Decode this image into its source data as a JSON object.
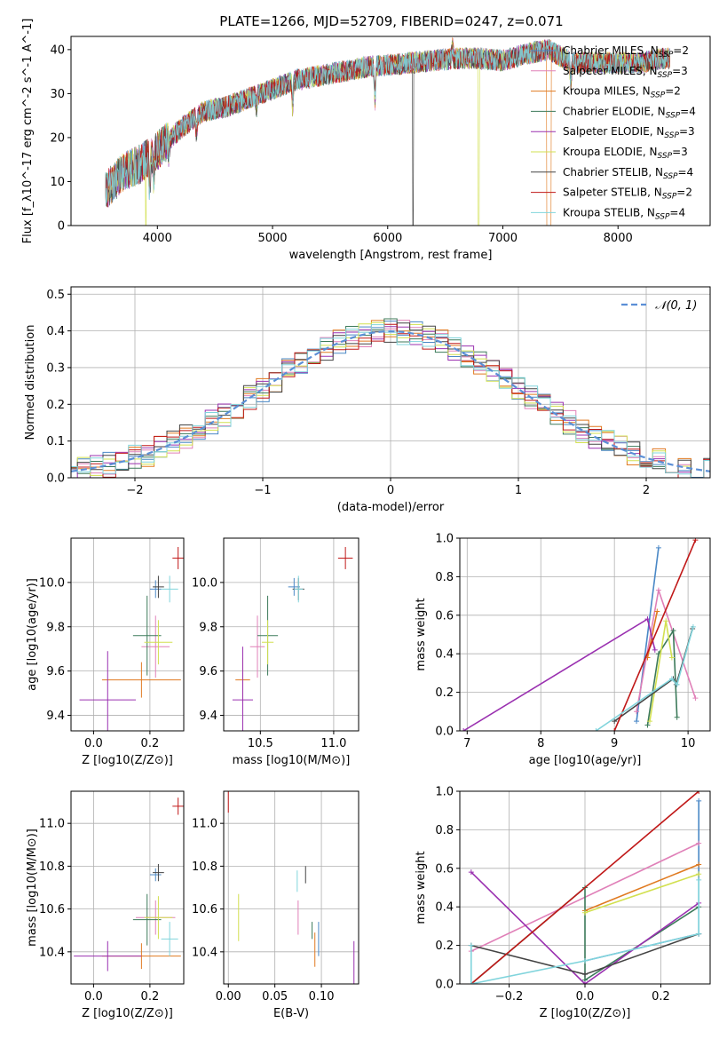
{
  "title": "PLATE=1266, MJD=52709, FIBERID=0247, z=0.071",
  "series": [
    {
      "name": "Chabrier MILES",
      "n_ssp": "2",
      "color": "#4a88c6"
    },
    {
      "name": "Salpeter MILES",
      "n_ssp": "3",
      "color": "#e080b8"
    },
    {
      "name": "Kroupa MILES",
      "n_ssp": "2",
      "color": "#e07a20"
    },
    {
      "name": "Chabrier ELODIE",
      "n_ssp": "4",
      "color": "#3c7a5a"
    },
    {
      "name": "Salpeter ELODIE",
      "n_ssp": "3",
      "color": "#9a30b0"
    },
    {
      "name": "Kroupa ELODIE",
      "n_ssp": "3",
      "color": "#d2e050"
    },
    {
      "name": "Chabrier STELIB",
      "n_ssp": "4",
      "color": "#444444"
    },
    {
      "name": "Salpeter STELIB",
      "n_ssp": "2",
      "color": "#c01818"
    },
    {
      "name": "Kroupa STELIB",
      "n_ssp": "4",
      "color": "#80d4dc"
    }
  ],
  "chart_data": [
    {
      "type": "line",
      "id": "spectrum",
      "xlabel": "wavelength [Angstrom, rest frame]",
      "ylabel": "Flux [f_λ10^-17 erg cm^-2 s^-1 A^-1]",
      "xlim": [
        3250,
        8800
      ],
      "ylim": [
        0,
        43
      ],
      "xticks": [
        "4000",
        "5000",
        "6000",
        "7000",
        "8000"
      ],
      "yticks": [
        "0",
        "10",
        "20",
        "30",
        "40"
      ],
      "continuum": {
        "x": [
          3550,
          3700,
          3850,
          4000,
          4200,
          4400,
          4600,
          4800,
          5000,
          5200,
          5400,
          5600,
          5800,
          6000,
          6200,
          6400,
          6600,
          6800,
          7000,
          7200,
          7400,
          7600,
          7800,
          8000,
          8200,
          8400
        ],
        "y": [
          8,
          12,
          14,
          17,
          22,
          26,
          27,
          29,
          31,
          33,
          34,
          35,
          36,
          36.5,
          37,
          37.5,
          38,
          38,
          37.5,
          39,
          40,
          37,
          37,
          37,
          37,
          38
        ]
      },
      "grid": false
    },
    {
      "type": "line",
      "id": "residual-histogram",
      "xlabel": "(data-model)/error",
      "ylabel": "Normed distribution",
      "xlim": [
        -2.5,
        2.5
      ],
      "ylim": [
        0,
        0.52
      ],
      "xticks": [
        "−2",
        "−1",
        "0",
        "1",
        "2"
      ],
      "yticks": [
        "0.0",
        "0.1",
        "0.2",
        "0.3",
        "0.4",
        "0.5"
      ],
      "reference_label": "𝒩(0, 1)",
      "bin_width": 0.1,
      "grid": true
    },
    {
      "type": "scatter",
      "id": "age-vs-Z",
      "xlabel": "Z [log10(Z/Z⊙)]",
      "ylabel": "age  [log10(age/yr)]",
      "xlim": [
        -0.08,
        0.32
      ],
      "ylim": [
        9.33,
        10.2
      ],
      "xticks": [
        "0.0",
        "0.2"
      ],
      "yticks": [
        "9.4",
        "9.6",
        "9.8",
        "10.0"
      ],
      "points": [
        {
          "x": 0.22,
          "y": 9.97,
          "xerr": 0.02,
          "yerr": 0.04
        },
        {
          "x": 0.22,
          "y": 9.71,
          "xerr": 0.05,
          "yerr": 0.14
        },
        {
          "x": 0.17,
          "y": 9.56,
          "xerr": 0.14,
          "yerr": 0.08
        },
        {
          "x": 0.19,
          "y": 9.76,
          "xerr": 0.05,
          "yerr": 0.18
        },
        {
          "x": 0.05,
          "y": 9.47,
          "xerr": 0.1,
          "yerr": 0.22
        },
        {
          "x": 0.23,
          "y": 9.73,
          "xerr": 0.05,
          "yerr": 0.1
        },
        {
          "x": 0.23,
          "y": 9.98,
          "xerr": 0.02,
          "yerr": 0.05
        },
        {
          "x": 0.3,
          "y": 10.11,
          "xerr": 0.02,
          "yerr": 0.05
        },
        {
          "x": 0.27,
          "y": 9.97,
          "xerr": 0.03,
          "yerr": 0.06
        }
      ],
      "grid": true
    },
    {
      "type": "scatter",
      "id": "age-vs-mass",
      "xlabel": "mass [log10(M/M⊙)]",
      "ylabel": "",
      "xlim": [
        10.25,
        11.17
      ],
      "ylim": [
        9.33,
        10.2
      ],
      "xticks": [
        "10.5",
        "11.0"
      ],
      "yticks": [
        "9.4",
        "9.6",
        "9.8",
        "10.0"
      ],
      "points": [
        {
          "x": 10.73,
          "y": 9.98,
          "xerr": 0.04,
          "yerr": 0.04
        },
        {
          "x": 10.48,
          "y": 9.71,
          "xerr": 0.05,
          "yerr": 0.14
        },
        {
          "x": 10.38,
          "y": 9.56,
          "xerr": 0.05,
          "yerr": 0.1
        },
        {
          "x": 10.55,
          "y": 9.76,
          "xerr": 0.07,
          "yerr": 0.18
        },
        {
          "x": 10.38,
          "y": 9.47,
          "xerr": 0.07,
          "yerr": 0.24
        },
        {
          "x": 10.55,
          "y": 9.73,
          "xerr": 0.04,
          "yerr": 0.1
        },
        {
          "x": 10.76,
          "y": 9.97,
          "xerr": 0.04,
          "yerr": 0.05
        },
        {
          "x": 11.08,
          "y": 10.11,
          "xerr": 0.05,
          "yerr": 0.05
        },
        {
          "x": 10.76,
          "y": 9.97,
          "xerr": 0.03,
          "yerr": 0.06
        }
      ],
      "grid": true
    },
    {
      "type": "line",
      "id": "mass-weight-vs-age",
      "xlabel": "age  [log10(age/yr)]",
      "ylabel": "mass weight",
      "xlim": [
        6.9,
        10.3
      ],
      "ylim": [
        0,
        1.0
      ],
      "xticks": [
        "7",
        "8",
        "9",
        "10"
      ],
      "yticks": [
        "0.0",
        "0.2",
        "0.4",
        "0.6",
        "0.8",
        "1.0"
      ],
      "lines": [
        {
          "x": [
            9.3,
            9.6
          ],
          "y": [
            0.05,
            0.95
          ]
        },
        {
          "x": [
            9.3,
            9.6,
            10.1
          ],
          "y": [
            0.1,
            0.73,
            0.17
          ]
        },
        {
          "x": [
            9.45,
            9.58
          ],
          "y": [
            0.38,
            0.62
          ]
        },
        {
          "x": [
            9.45,
            9.6,
            9.8,
            9.85
          ],
          "y": [
            0.03,
            0.4,
            0.52,
            0.07
          ]
        },
        {
          "x": [
            6.95,
            9.45,
            9.55
          ],
          "y": [
            0.0,
            0.58,
            0.42
          ]
        },
        {
          "x": [
            9.48,
            9.7,
            9.78
          ],
          "y": [
            0.05,
            0.57,
            0.38
          ]
        },
        {
          "x": [
            9.0,
            9.8,
            9.84,
            10.06
          ],
          "y": [
            0.05,
            0.27,
            0.24,
            0.53
          ]
        },
        {
          "x": [
            9.0,
            10.1
          ],
          "y": [
            0.0,
            0.99
          ]
        },
        {
          "x": [
            8.75,
            9.78,
            9.85,
            10.07
          ],
          "y": [
            0.0,
            0.27,
            0.24,
            0.54
          ]
        }
      ],
      "grid": true
    },
    {
      "type": "scatter",
      "id": "mass-vs-Z",
      "xlabel": "Z [log10(Z/Z⊙)]",
      "ylabel": "mass [log10(M/M⊙)]",
      "xlim": [
        -0.08,
        0.32
      ],
      "ylim": [
        10.25,
        11.15
      ],
      "xticks": [
        "0.0",
        "0.2"
      ],
      "yticks": [
        "10.4",
        "10.6",
        "10.8",
        "11.0"
      ],
      "points": [
        {
          "x": 0.22,
          "y": 10.76,
          "xerr": 0.02,
          "yerr": 0.03
        },
        {
          "x": 0.22,
          "y": 10.56,
          "xerr": 0.07,
          "yerr": 0.08
        },
        {
          "x": 0.17,
          "y": 10.38,
          "xerr": 0.14,
          "yerr": 0.06
        },
        {
          "x": 0.19,
          "y": 10.55,
          "xerr": 0.05,
          "yerr": 0.12
        },
        {
          "x": 0.05,
          "y": 10.38,
          "xerr": 0.12,
          "yerr": 0.07
        },
        {
          "x": 0.23,
          "y": 10.56,
          "xerr": 0.05,
          "yerr": 0.1
        },
        {
          "x": 0.23,
          "y": 10.77,
          "xerr": 0.02,
          "yerr": 0.04
        },
        {
          "x": 0.3,
          "y": 11.08,
          "xerr": 0.02,
          "yerr": 0.04
        },
        {
          "x": 0.27,
          "y": 10.46,
          "xerr": 0.03,
          "yerr": 0.08
        }
      ],
      "grid": true
    },
    {
      "type": "scatter",
      "id": "mass-vs-ebv",
      "xlabel": "E(B-V)",
      "ylabel": "",
      "xlim": [
        -0.005,
        0.14
      ],
      "ylim": [
        10.25,
        11.15
      ],
      "xticks": [
        "0.00",
        "0.05",
        "0.10"
      ],
      "yticks": [
        "10.4",
        "10.6",
        "10.8",
        "11.0"
      ],
      "points": [
        {
          "x": 0.097,
          "y": 10.46,
          "yerr": 0.08
        },
        {
          "x": 0.075,
          "y": 10.56,
          "yerr": 0.08
        },
        {
          "x": 0.093,
          "y": 10.41,
          "yerr": 0.08
        },
        {
          "x": 0.09,
          "y": 10.5,
          "yerr": 0.04
        },
        {
          "x": 0.135,
          "y": 10.35,
          "yerr": 0.1
        },
        {
          "x": 0.011,
          "y": 10.56,
          "yerr": 0.11
        },
        {
          "x": 0.083,
          "y": 10.76,
          "yerr": 0.04
        },
        {
          "x": 0.0,
          "y": 11.1,
          "yerr": 0.05
        },
        {
          "x": 0.074,
          "y": 10.73,
          "yerr": 0.05
        }
      ],
      "grid": true
    },
    {
      "type": "line",
      "id": "mass-weight-vs-Z",
      "xlabel": "Z [log10(Z/Z⊙)]",
      "ylabel": "mass weight",
      "xlim": [
        -0.33,
        0.33
      ],
      "ylim": [
        0,
        1.0
      ],
      "xticks": [
        "−0.2",
        "0.0",
        "0.2"
      ],
      "yticks": [
        "0.0",
        "0.2",
        "0.4",
        "0.6",
        "0.8",
        "1.0"
      ],
      "lines": [
        {
          "x": [
            0.0,
            0.3,
            0.3
          ],
          "y": [
            0.12,
            0.26,
            0.95
          ]
        },
        {
          "x": [
            -0.3,
            0.3
          ],
          "y": [
            0.17,
            0.73
          ]
        },
        {
          "x": [
            0.0,
            0.3
          ],
          "y": [
            0.38,
            0.62
          ]
        },
        {
          "x": [
            -0.3,
            0.0,
            0.0,
            0.3
          ],
          "y": [
            0.0,
            0.5,
            0.02,
            0.4
          ]
        },
        {
          "x": [
            -0.3,
            0.0,
            0.3
          ],
          "y": [
            0.58,
            0.0,
            0.42
          ]
        },
        {
          "x": [
            0.0,
            0.3
          ],
          "y": [
            0.37,
            0.57
          ]
        },
        {
          "x": [
            -0.3,
            0.0,
            0.3
          ],
          "y": [
            0.2,
            0.05,
            0.26
          ]
        },
        {
          "x": [
            -0.3,
            0.3
          ],
          "y": [
            0.0,
            1.0
          ]
        },
        {
          "x": [
            -0.3,
            -0.3,
            0.0,
            0.3,
            0.3
          ],
          "y": [
            0.2,
            0.0,
            0.12,
            0.26,
            0.54
          ]
        }
      ],
      "grid": true
    }
  ]
}
